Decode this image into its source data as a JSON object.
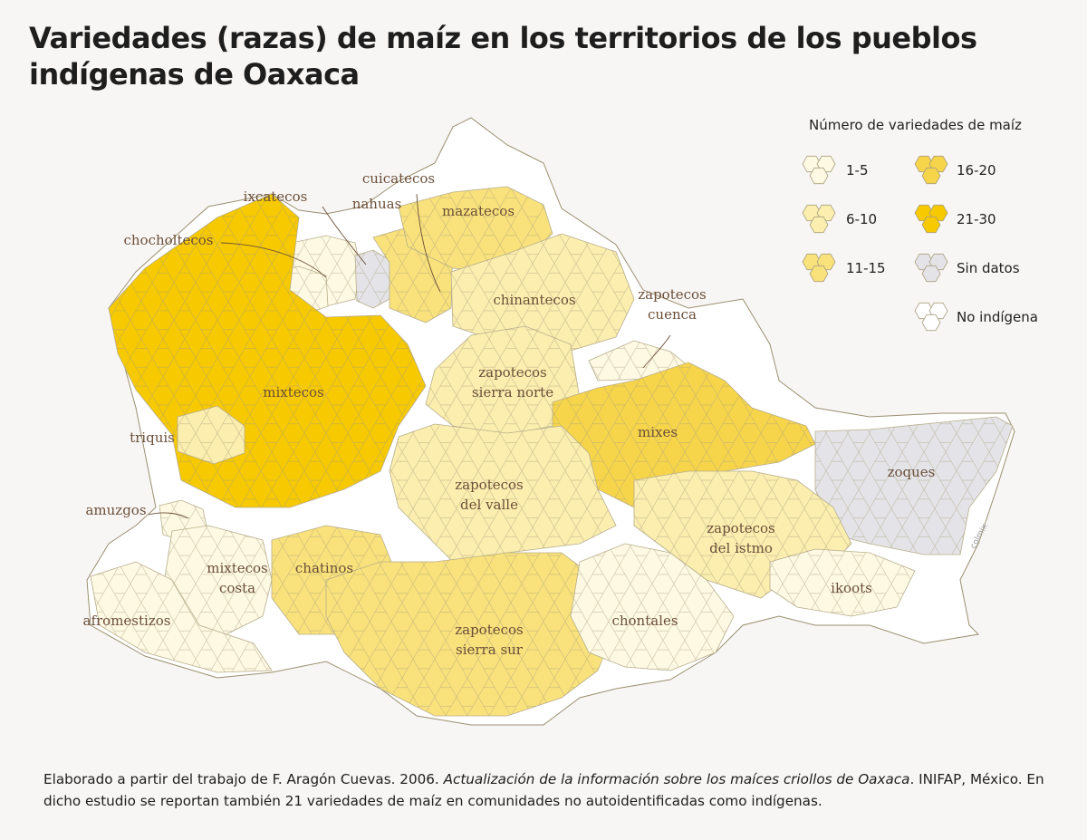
{
  "title": "Variedades (razas) de maíz en los territorios de los pueblos indígenas de Oaxaca",
  "legend": {
    "title": "Número de variedades de maíz",
    "items": [
      {
        "label": "1-5",
        "color": "#fdf9e3"
      },
      {
        "label": "6-10",
        "color": "#fbeeae"
      },
      {
        "label": "11-15",
        "color": "#f9e27b"
      },
      {
        "label": "16-20",
        "color": "#f7d54a"
      },
      {
        "label": "21-30",
        "color": "#f6c901"
      },
      {
        "label": "Sin datos",
        "color": "#e4e4e8"
      },
      {
        "label": "No indígena",
        "color": "#ffffff"
      }
    ]
  },
  "regions": [
    {
      "name": "ixcatecos",
      "category": "1-5"
    },
    {
      "name": "nahuas",
      "category": "Sin datos"
    },
    {
      "name": "cuicatecos",
      "category": "11-15"
    },
    {
      "name": "mazatecos",
      "category": "11-15"
    },
    {
      "name": "chocholtecos",
      "category": "1-5"
    },
    {
      "name": "chinantecos",
      "category": "6-10"
    },
    {
      "name": "zapotecos cuenca",
      "label_lines": [
        "zapotecos",
        "cuenca"
      ],
      "category": "1-5"
    },
    {
      "name": "mixtecos",
      "category": "21-30"
    },
    {
      "name": "zapotecos sierra norte",
      "label_lines": [
        "zapotecos",
        "sierra norte"
      ],
      "category": "6-10"
    },
    {
      "name": "triquis",
      "category": "6-10"
    },
    {
      "name": "mixes",
      "category": "16-20"
    },
    {
      "name": "zoques",
      "category": "Sin datos"
    },
    {
      "name": "amuzgos",
      "category": "1-5"
    },
    {
      "name": "zapotecos del valle",
      "label_lines": [
        "zapotecos",
        "del valle"
      ],
      "category": "6-10"
    },
    {
      "name": "zapotecos del istmo",
      "label_lines": [
        "zapotecos",
        "del istmo"
      ],
      "category": "6-10"
    },
    {
      "name": "mixtecos costa",
      "label_lines": [
        "mixtecos",
        "costa"
      ],
      "category": "1-5"
    },
    {
      "name": "chatinos",
      "category": "11-15"
    },
    {
      "name": "ikoots",
      "category": "1-5"
    },
    {
      "name": "afromestizos",
      "category": "1-5"
    },
    {
      "name": "zapotecos sierra sur",
      "label_lines": [
        "zapotecos",
        "sierra sur"
      ],
      "category": "11-15"
    },
    {
      "name": "chontales",
      "category": "1-5"
    }
  ],
  "credit": "colmix",
  "caption": {
    "part1": "Elaborado a partir del trabajo de F. Aragón Cuevas. 2006. ",
    "italic": "Actualización de la información sobre los maíces criollos de Oaxaca",
    "part2": ". INIFAP, México. En dicho estudio se reportan también 21 variedades de maíz en comunidades no autoidentificadas como indígenas."
  }
}
